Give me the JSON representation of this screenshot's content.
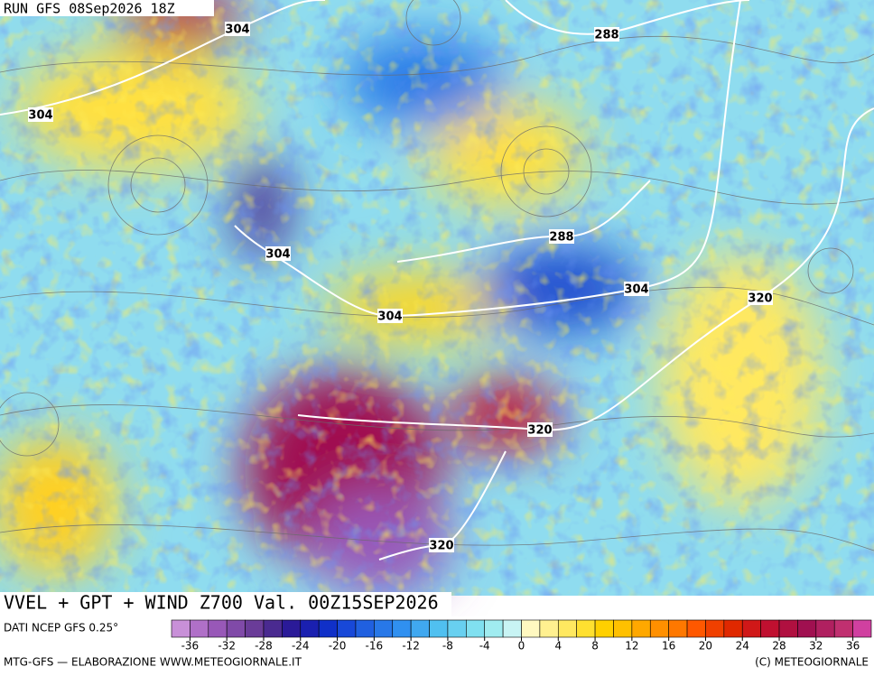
{
  "header": {
    "run": "RUN GFS 08Sep2026 18Z"
  },
  "map": {
    "contour_labels": [
      "304",
      "304",
      "288",
      "288",
      "304",
      "304",
      "320",
      "304",
      "320",
      "320"
    ]
  },
  "footer": {
    "title": "VVEL + GPT + WIND Z700 Val. 00Z15SEP2026",
    "source": "DATI NCEP GFS 0.25°",
    "credit_left": "MTG-GFS — ELABORAZIONE WWW.METEOGIORNALE.IT",
    "credit_right": "(C) METEOGIORNALE"
  },
  "colorbar": {
    "range": [
      -38,
      38
    ],
    "ticks": [
      -36,
      -32,
      -28,
      -24,
      -20,
      -16,
      -12,
      -8,
      -4,
      0,
      4,
      8,
      12,
      16,
      20,
      24,
      28,
      32,
      36
    ],
    "colors": [
      "#c890d8",
      "#b070c8",
      "#9858b8",
      "#804aa8",
      "#6a3c98",
      "#4a2a90",
      "#2a1a98",
      "#1a20b0",
      "#1030c8",
      "#1848d8",
      "#2060e0",
      "#2878e8",
      "#3090f0",
      "#40a8f0",
      "#50c0f0",
      "#68d0f0",
      "#80e0f0",
      "#a0ecf0",
      "#c8f4f4",
      "#fff8c0",
      "#fff090",
      "#ffe860",
      "#ffe030",
      "#ffd000",
      "#ffc000",
      "#ffa800",
      "#ff9000",
      "#ff7800",
      "#ff5800",
      "#f04000",
      "#e02800",
      "#d01818",
      "#c01030",
      "#b01040",
      "#a01050",
      "#b02060",
      "#c03070",
      "#d040a0"
    ]
  }
}
